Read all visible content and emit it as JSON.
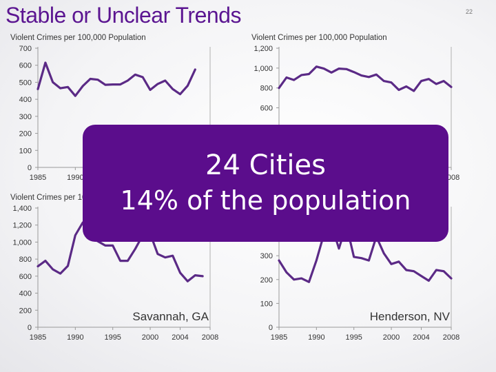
{
  "slide": {
    "title": "Stable or Unclear Trends",
    "page_number": "22"
  },
  "overlay": {
    "line1": "24 Cities",
    "line2": "14% of the population"
  },
  "colors": {
    "title": "#5b1591",
    "line": "#5b2a86",
    "overlay_bg": "#5b0d8c",
    "gridline": "#c8c8c8"
  },
  "chart_data": [
    {
      "type": "line",
      "ylabel": "Violent Crimes per 100,000 Population",
      "city_label": "",
      "ylim": [
        0,
        700
      ],
      "yticks": [
        "0",
        "100",
        "200",
        "300",
        "400",
        "500",
        "600",
        "700"
      ],
      "ytick_values": [
        0,
        100,
        200,
        300,
        400,
        500,
        600,
        700
      ],
      "xlim": [
        1985,
        2008
      ],
      "xticks": [
        "1985",
        "1990"
      ],
      "xtick_values": [
        1985,
        1990
      ],
      "x": [
        1985,
        1986,
        1987,
        1988,
        1989,
        1990,
        1991,
        1992,
        1993,
        1994,
        1995,
        1996,
        1997,
        1998,
        1999,
        2000,
        2001,
        2002,
        2003,
        2004,
        2005,
        2006
      ],
      "values": [
        460,
        615,
        500,
        465,
        472,
        420,
        478,
        520,
        515,
        485,
        487,
        487,
        510,
        545,
        530,
        455,
        490,
        510,
        460,
        430,
        480,
        575
      ]
    },
    {
      "type": "line",
      "ylabel": "Violent Crimes per 100,000 Population",
      "city_label": "",
      "ylim": [
        0,
        1200
      ],
      "yticks": [
        "600",
        "800",
        "1,000",
        "1,200"
      ],
      "ytick_values": [
        600,
        800,
        1000,
        1200
      ],
      "xlim": [
        1985,
        2008
      ],
      "xticks": [
        "2008"
      ],
      "xtick_values": [
        2008
      ],
      "x": [
        1985,
        1986,
        1987,
        1988,
        1989,
        1990,
        1991,
        1992,
        1993,
        1994,
        1995,
        1996,
        1997,
        1998,
        1999,
        2000,
        2001,
        2002,
        2003,
        2004,
        2005,
        2006,
        2007,
        2008
      ],
      "values": [
        800,
        905,
        880,
        930,
        940,
        1015,
        995,
        955,
        995,
        990,
        960,
        925,
        910,
        935,
        870,
        855,
        780,
        815,
        770,
        870,
        890,
        840,
        870,
        810
      ]
    },
    {
      "type": "line",
      "ylabel": "Violent Crimes per 100,000 Population",
      "city_label": "Savannah, GA",
      "ylim": [
        0,
        1400
      ],
      "yticks": [
        "0",
        "200",
        "400",
        "600",
        "800",
        "1,000",
        "1,200",
        "1,400"
      ],
      "ytick_values": [
        0,
        200,
        400,
        600,
        800,
        1000,
        1200,
        1400
      ],
      "xlim": [
        1985,
        2008
      ],
      "xticks": [
        "1985",
        "1990",
        "1995",
        "2000",
        "2004",
        "2008"
      ],
      "xtick_values": [
        1985,
        1990,
        1995,
        2000,
        2004,
        2008
      ],
      "x": [
        1985,
        1986,
        1987,
        1988,
        1989,
        1990,
        1991,
        1992,
        1993,
        1994,
        1995,
        1996,
        1997,
        1998,
        1999,
        2000,
        2001,
        2002,
        2003,
        2004,
        2005,
        2006,
        2007
      ],
      "values": [
        715,
        780,
        680,
        630,
        720,
        1080,
        1230,
        1050,
        1010,
        960,
        960,
        780,
        780,
        920,
        1080,
        1100,
        860,
        820,
        840,
        640,
        540,
        610,
        600
      ]
    },
    {
      "type": "line",
      "ylabel": "",
      "city_label": "Henderson, NV",
      "ylim": [
        0,
        500
      ],
      "yticks": [
        "0",
        "100",
        "200",
        "300"
      ],
      "ytick_values": [
        0,
        100,
        200,
        300
      ],
      "xlim": [
        1985,
        2008
      ],
      "xticks": [
        "1985",
        "1990",
        "1995",
        "2000",
        "2004",
        "2008"
      ],
      "xtick_values": [
        1985,
        1990,
        1995,
        2000,
        2004,
        2008
      ],
      "x": [
        1985,
        1986,
        1987,
        1988,
        1989,
        1990,
        1991,
        1992,
        1993,
        1994,
        1995,
        1996,
        1997,
        1998,
        1999,
        2000,
        2001,
        2002,
        2003,
        2004,
        2005,
        2006,
        2007,
        2008
      ],
      "values": [
        280,
        230,
        200,
        205,
        190,
        280,
        390,
        430,
        330,
        430,
        295,
        290,
        280,
        380,
        310,
        265,
        275,
        240,
        235,
        215,
        195,
        240,
        235,
        205
      ]
    }
  ]
}
